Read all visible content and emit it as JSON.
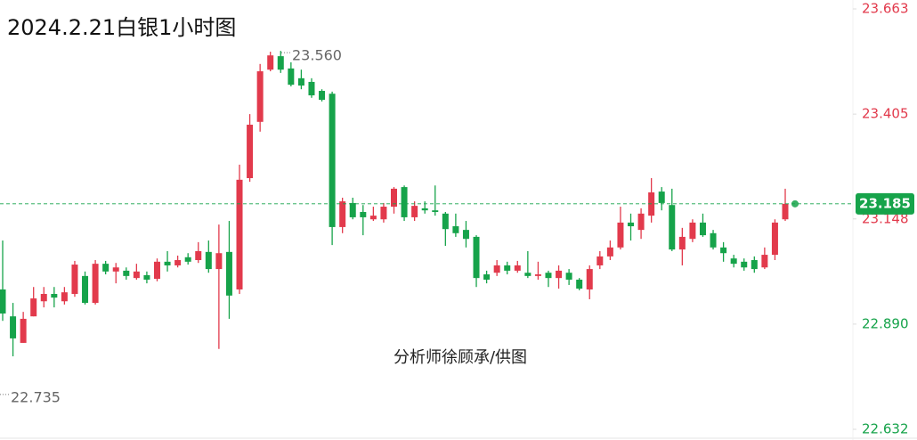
{
  "chart_data": {
    "type": "candlestick",
    "title": "2024.2.21白银1小时图",
    "watermark": "分析师徐顾承/供图",
    "up_color": "#e23a4c",
    "down_color": "#16a34a",
    "ylim": [
      22.632,
      23.663
    ],
    "yticks": [
      22.632,
      {
        "value": 22.89,
        "label": "22.890"
      },
      23.148,
      23.405,
      23.663
    ],
    "ytick_colors": [
      "#16a34a",
      "#16a34a",
      "#e23a4c",
      "#e23a4c",
      "#e23a4c"
    ],
    "current_price": 23.185,
    "current_price_color": "#16a34a",
    "annotations": [
      {
        "value": 23.56,
        "label": "23.560"
      },
      {
        "value": 22.735,
        "label": "22.735"
      }
    ],
    "open": [
      22.975,
      22.909,
      22.844,
      22.909,
      22.946,
      22.964,
      22.946,
      22.964,
      23.008,
      22.942,
      23.038,
      23.019,
      23.021,
      23.003,
      23.01,
      23.001,
      23.043,
      23.034,
      23.054,
      23.047,
      23.067,
      23.025,
      23.067,
      22.975,
      23.248,
      23.386,
      23.514,
      23.547,
      23.517,
      23.493,
      23.484,
      23.462,
      23.455,
      23.128,
      23.187,
      23.165,
      23.147,
      23.147,
      23.178,
      23.226,
      23.152,
      23.174,
      23.169,
      23.161,
      23.13,
      23.121,
      23.104,
      23.012,
      23.016,
      23.034,
      23.021,
      23.016,
      23.008,
      23.016,
      23.003,
      23.016,
      22.999,
      22.975,
      23.034,
      23.056,
      23.078,
      23.139,
      23.121,
      23.156,
      23.215,
      23.182,
      23.073,
      23.099,
      23.139,
      23.113,
      23.078,
      23.051,
      23.043,
      23.047,
      23.029,
      23.06,
      23.147
    ],
    "high": [
      23.095,
      22.942,
      22.92,
      22.981,
      22.981,
      22.981,
      22.981,
      23.045,
      23.019,
      23.047,
      23.045,
      23.04,
      23.029,
      23.038,
      23.019,
      23.051,
      23.069,
      23.058,
      23.064,
      23.091,
      23.095,
      23.134,
      23.143,
      23.281,
      23.405,
      23.528,
      23.558,
      23.56,
      23.532,
      23.514,
      23.493,
      23.466,
      23.46,
      23.2,
      23.2,
      23.182,
      23.178,
      23.187,
      23.226,
      23.23,
      23.191,
      23.191,
      23.23,
      23.165,
      23.161,
      23.143,
      23.108,
      23.021,
      23.047,
      23.043,
      23.045,
      23.069,
      23.043,
      23.021,
      23.034,
      23.025,
      23.003,
      23.034,
      23.069,
      23.095,
      23.178,
      23.161,
      23.174,
      23.248,
      23.226,
      23.222,
      23.126,
      23.147,
      23.161,
      23.121,
      23.091,
      23.06,
      23.051,
      23.056,
      23.078,
      23.147,
      23.222
    ],
    "low": [
      22.898,
      22.811,
      22.844,
      22.909,
      22.931,
      22.931,
      22.938,
      22.957,
      22.938,
      22.938,
      23.012,
      22.99,
      22.999,
      22.999,
      22.99,
      22.995,
      23.019,
      23.029,
      23.036,
      23.04,
      23.016,
      22.829,
      22.903,
      22.964,
      23.239,
      23.362,
      23.51,
      23.506,
      23.473,
      23.466,
      23.445,
      23.436,
      23.084,
      23.113,
      23.147,
      23.108,
      23.143,
      23.139,
      23.161,
      23.143,
      23.143,
      23.161,
      23.156,
      23.082,
      23.104,
      23.078,
      22.981,
      22.99,
      23.008,
      23.012,
      23.016,
      23.003,
      22.999,
      22.981,
      22.977,
      22.986,
      22.973,
      22.951,
      23.025,
      23.047,
      23.073,
      23.095,
      23.099,
      23.139,
      23.169,
      23.069,
      23.034,
      23.091,
      23.104,
      23.073,
      23.043,
      23.029,
      23.021,
      23.016,
      23.025,
      23.047,
      23.143
    ],
    "close": [
      22.916,
      22.855,
      22.903,
      22.953,
      22.964,
      22.955,
      22.968,
      23.036,
      22.942,
      23.038,
      23.019,
      23.029,
      23.008,
      23.019,
      22.999,
      23.043,
      23.034,
      23.047,
      23.043,
      23.069,
      23.025,
      23.064,
      22.96,
      23.244,
      23.379,
      23.51,
      23.549,
      23.514,
      23.477,
      23.475,
      23.451,
      23.44,
      23.128,
      23.191,
      23.152,
      23.152,
      23.156,
      23.178,
      23.222,
      23.152,
      23.18,
      23.169,
      23.165,
      23.123,
      23.113,
      23.099,
      23.003,
      22.999,
      23.034,
      23.021,
      23.034,
      23.008,
      23.012,
      23.003,
      23.021,
      22.999,
      22.977,
      23.025,
      23.056,
      23.078,
      23.139,
      23.13,
      23.161,
      23.213,
      23.187,
      23.073,
      23.104,
      23.139,
      23.108,
      23.078,
      23.064,
      23.038,
      23.029,
      23.025,
      23.06,
      23.139,
      23.185
    ]
  }
}
